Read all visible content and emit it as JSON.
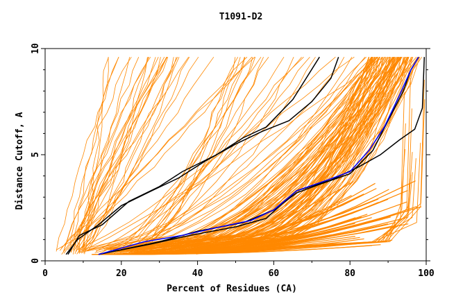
{
  "chart_data": {
    "type": "line",
    "title": "T1091-D2",
    "xlabel": "Percent of Residues (CA)",
    "ylabel": "Distance Cutoff, A",
    "xlim": [
      0,
      100
    ],
    "ylim": [
      0,
      10
    ],
    "x_ticks": [
      "0",
      "20",
      "40",
      "60",
      "80",
      "100"
    ],
    "y_ticks": [
      "0",
      "5",
      "10"
    ],
    "grid": false,
    "legend": "none",
    "colors": {
      "background_models": "#ff8800",
      "highlight_black": "#000000",
      "highlight_blue": "#0000ff",
      "axes": "#000000"
    },
    "series": [
      {
        "color": "#000000",
        "points": [
          [
            6,
            0.3
          ],
          [
            9,
            1.2
          ],
          [
            15,
            1.7
          ],
          [
            22,
            2.8
          ],
          [
            30,
            3.5
          ],
          [
            36,
            4.2
          ],
          [
            45,
            5.0
          ],
          [
            52,
            5.8
          ],
          [
            58,
            6.3
          ],
          [
            65,
            7.6
          ],
          [
            72,
            9.6
          ]
        ]
      },
      {
        "color": "#000000",
        "points": [
          [
            5.5,
            0.3
          ],
          [
            8.5,
            1.0
          ],
          [
            14,
            1.7
          ],
          [
            20,
            2.6
          ],
          [
            28,
            3.3
          ],
          [
            35,
            3.9
          ],
          [
            42,
            4.7
          ],
          [
            50,
            5.5
          ],
          [
            57,
            6.1
          ],
          [
            64,
            6.6
          ],
          [
            70,
            7.5
          ],
          [
            75,
            8.6
          ],
          [
            77,
            9.6
          ]
        ]
      },
      {
        "color": "#000000",
        "points": [
          [
            14,
            0.3
          ],
          [
            30,
            0.9
          ],
          [
            40,
            1.4
          ],
          [
            52,
            1.8
          ],
          [
            60,
            2.4
          ],
          [
            66,
            3.2
          ],
          [
            72,
            3.6
          ],
          [
            80,
            4.1
          ],
          [
            86,
            5.2
          ],
          [
            90,
            6.6
          ],
          [
            94,
            8.0
          ],
          [
            96,
            9.0
          ],
          [
            98,
            9.6
          ]
        ]
      },
      {
        "color": "#000000",
        "points": [
          [
            14,
            0.3
          ],
          [
            28,
            0.8
          ],
          [
            38,
            1.2
          ],
          [
            50,
            1.6
          ],
          [
            58,
            2.0
          ],
          [
            66,
            3.3
          ],
          [
            75,
            3.8
          ],
          [
            82,
            4.4
          ],
          [
            88,
            5.0
          ],
          [
            93,
            5.7
          ],
          [
            97,
            6.2
          ],
          [
            99,
            7.2
          ],
          [
            99.5,
            9.6
          ]
        ]
      },
      {
        "color": "#0000ff",
        "points": [
          [
            14,
            0.3
          ],
          [
            26,
            0.9
          ],
          [
            36,
            1.2
          ],
          [
            46,
            1.6
          ],
          [
            54,
            1.9
          ],
          [
            60,
            2.4
          ],
          [
            66,
            3.3
          ],
          [
            74,
            3.8
          ],
          [
            80,
            4.2
          ],
          [
            85,
            5.2
          ],
          [
            89,
            6.3
          ],
          [
            93,
            7.8
          ],
          [
            96,
            9.0
          ],
          [
            98,
            9.6
          ]
        ]
      }
    ]
  }
}
